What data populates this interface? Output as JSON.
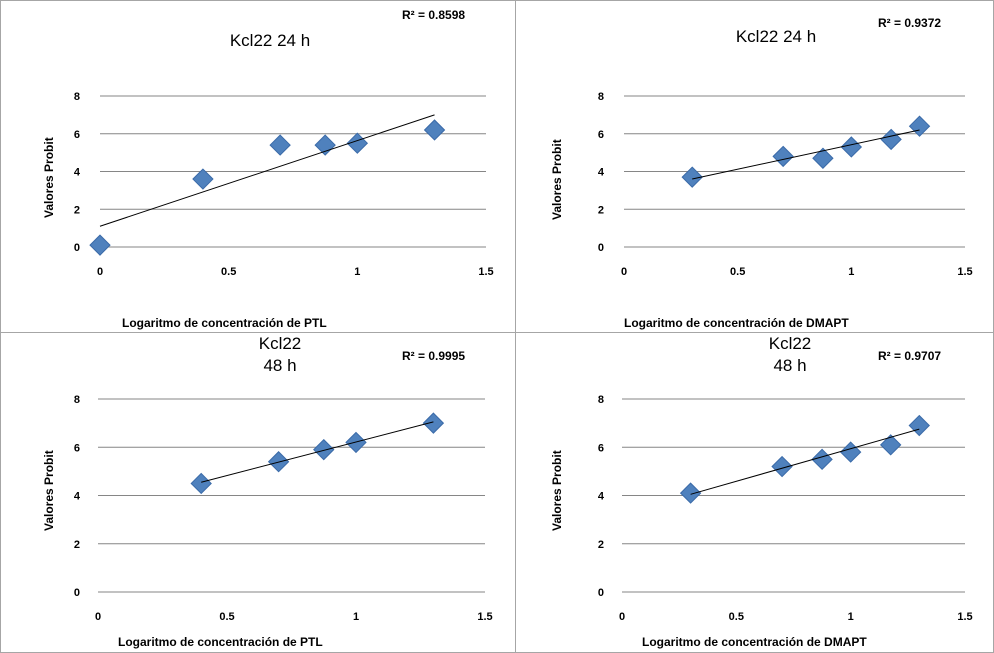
{
  "chart_data": [
    {
      "type": "scatter",
      "title": "Kcl22 24 h",
      "r2_label": "R² = 0.8598",
      "xlabel": "Logaritmo de concentración de PTL",
      "ylabel": "Valores Probit",
      "xlim": [
        0,
        1.5
      ],
      "ylim": [
        0,
        8
      ],
      "xticks": [
        "0",
        "0.5",
        "1",
        "1.5"
      ],
      "yticks": [
        "0",
        "2",
        "4",
        "6",
        "8"
      ],
      "grid": true,
      "points": [
        {
          "x": 0.0,
          "y": 0.1
        },
        {
          "x": 0.4,
          "y": 3.6
        },
        {
          "x": 0.7,
          "y": 5.4
        },
        {
          "x": 0.875,
          "y": 5.4
        },
        {
          "x": 1.0,
          "y": 5.5
        },
        {
          "x": 1.3,
          "y": 6.2
        }
      ],
      "trendline": {
        "x": [
          0,
          1.3
        ],
        "y": [
          1.1,
          7.0
        ]
      },
      "marker_color": "#4f81bd"
    },
    {
      "type": "scatter",
      "title": "Kcl22 24 h",
      "r2_label": "R² = 0.9372",
      "xlabel": "Logaritmo de concentración de DMAPT",
      "ylabel": "Valores Probit",
      "xlim": [
        0,
        1.5
      ],
      "ylim": [
        0,
        8
      ],
      "xticks": [
        "0",
        "0.5",
        "1",
        "1.5"
      ],
      "yticks": [
        "0",
        "2",
        "4",
        "6",
        "8"
      ],
      "grid": true,
      "points": [
        {
          "x": 0.3,
          "y": 3.7
        },
        {
          "x": 0.7,
          "y": 4.8
        },
        {
          "x": 0.875,
          "y": 4.7
        },
        {
          "x": 1.0,
          "y": 5.3
        },
        {
          "x": 1.175,
          "y": 5.7
        },
        {
          "x": 1.3,
          "y": 6.4
        }
      ],
      "trendline": {
        "x": [
          0.3,
          1.3
        ],
        "y": [
          3.6,
          6.2
        ]
      },
      "marker_color": "#4f81bd"
    },
    {
      "type": "scatter",
      "title": "Kcl22\n48 h",
      "r2_label": "R² = 0.9995",
      "xlabel": "Logaritmo de concentración de PTL",
      "ylabel": "Valores Probit",
      "xlim": [
        0,
        1.5
      ],
      "ylim": [
        0,
        8
      ],
      "xticks": [
        "0",
        "0.5",
        "1",
        "1.5"
      ],
      "yticks": [
        "0",
        "2",
        "4",
        "6",
        "8"
      ],
      "grid": true,
      "points": [
        {
          "x": 0.4,
          "y": 4.5
        },
        {
          "x": 0.7,
          "y": 5.4
        },
        {
          "x": 0.875,
          "y": 5.9
        },
        {
          "x": 1.0,
          "y": 6.2
        },
        {
          "x": 1.3,
          "y": 7.0
        }
      ],
      "trendline": {
        "x": [
          0.4,
          1.3
        ],
        "y": [
          4.55,
          7.05
        ]
      },
      "marker_color": "#4f81bd"
    },
    {
      "type": "scatter",
      "title": "Kcl22\n48 h",
      "r2_label": "R² = 0.9707",
      "xlabel": "Logaritmo de concentración de DMAPT",
      "ylabel": "Valores Probit",
      "xlim": [
        0,
        1.5
      ],
      "ylim": [
        0,
        8
      ],
      "xticks": [
        "0",
        "0.5",
        "1",
        "1.5"
      ],
      "yticks": [
        "0",
        "2",
        "4",
        "6",
        "8"
      ],
      "grid": true,
      "points": [
        {
          "x": 0.3,
          "y": 4.1
        },
        {
          "x": 0.7,
          "y": 5.2
        },
        {
          "x": 0.875,
          "y": 5.5
        },
        {
          "x": 1.0,
          "y": 5.8
        },
        {
          "x": 1.175,
          "y": 6.1
        },
        {
          "x": 1.3,
          "y": 6.9
        }
      ],
      "trendline": {
        "x": [
          0.3,
          1.3
        ],
        "y": [
          4.05,
          6.75
        ]
      },
      "marker_color": "#4f81bd"
    }
  ]
}
